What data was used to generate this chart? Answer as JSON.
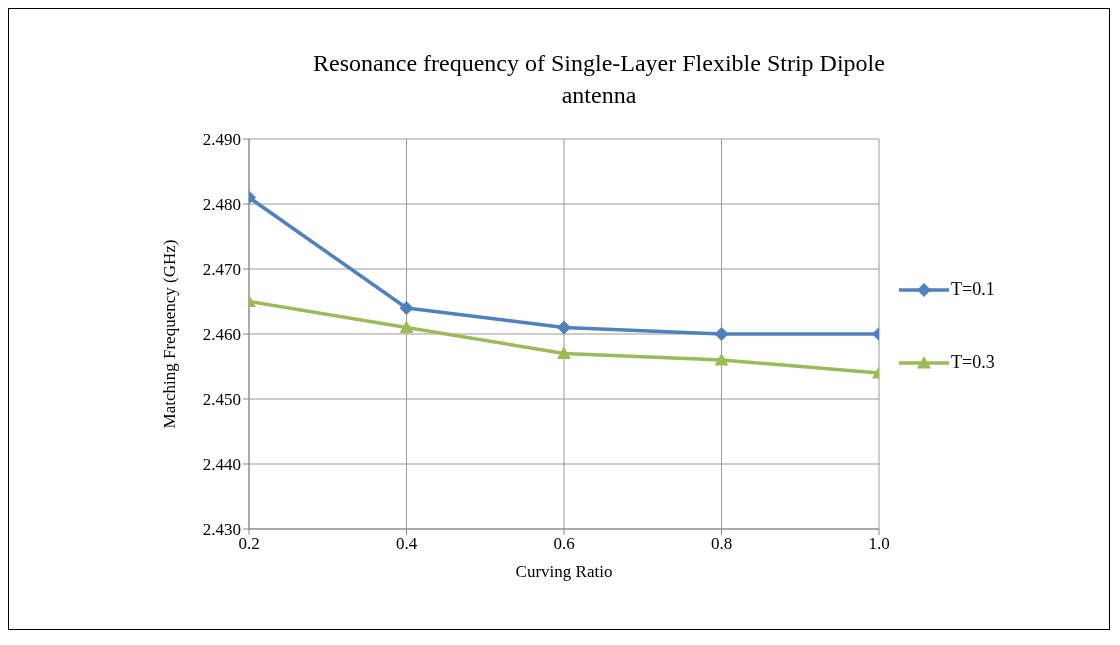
{
  "chart_data": {
    "type": "line",
    "title": "Resonance frequency of Single-Layer Flexible Strip Dipole antenna",
    "xlabel": "Curving Ratio",
    "ylabel": "Matching Frequency (GHz)",
    "x": [
      0.2,
      0.4,
      0.6,
      0.8,
      1.0
    ],
    "series": [
      {
        "name": "T=0.1",
        "color": "#4f81bd",
        "marker": "diamond",
        "values": [
          2.481,
          2.464,
          2.461,
          2.46,
          2.46
        ]
      },
      {
        "name": "T=0.3",
        "color": "#9bbb59",
        "marker": "triangle",
        "values": [
          2.465,
          2.461,
          2.457,
          2.456,
          2.454
        ]
      }
    ],
    "xlim": [
      0.2,
      1.0
    ],
    "xticks": [
      0.2,
      0.4,
      0.6,
      0.8,
      {
        "value": 1.0,
        "label": "1.0"
      }
    ],
    "ylim": [
      2.43,
      2.49
    ],
    "yticks": [
      {
        "value": 2.43,
        "label": "2.430"
      },
      {
        "value": 2.44,
        "label": "2.440"
      },
      {
        "value": 2.45,
        "label": "2.450"
      },
      {
        "value": 2.46,
        "label": "2.460"
      },
      {
        "value": 2.47,
        "label": "2.470"
      },
      {
        "value": 2.48,
        "label": "2.480"
      },
      {
        "value": 2.49,
        "label": "2.490"
      }
    ],
    "grid": true,
    "legend": "right",
    "line_style": "solid"
  }
}
